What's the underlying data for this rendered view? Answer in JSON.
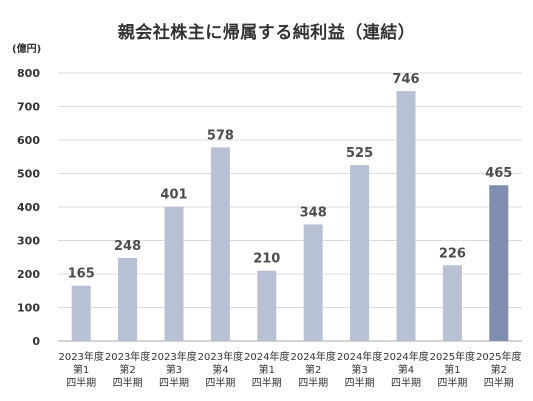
{
  "chart_data": {
    "type": "bar",
    "title": "親会社株主に帰属する純利益（連結）",
    "ylabel": "(億円)",
    "xlabel": "",
    "ylim": [
      0,
      800
    ],
    "yticks": [
      0,
      100,
      200,
      300,
      400,
      500,
      600,
      700,
      800
    ],
    "grid": true,
    "categories": [
      [
        "2023年度",
        "第1",
        "四半期"
      ],
      [
        "2023年度",
        "第2",
        "四半期"
      ],
      [
        "2023年度",
        "第3",
        "四半期"
      ],
      [
        "2023年度",
        "第4",
        "四半期"
      ],
      [
        "2024年度",
        "第1",
        "四半期"
      ],
      [
        "2024年度",
        "第2",
        "四半期"
      ],
      [
        "2024年度",
        "第3",
        "四半期"
      ],
      [
        "2024年度",
        "第4",
        "四半期"
      ],
      [
        "2025年度",
        "第1",
        "四半期"
      ],
      [
        "2025年度",
        "第2",
        "四半期"
      ]
    ],
    "values": [
      165,
      248,
      401,
      578,
      210,
      348,
      525,
      746,
      226,
      465
    ],
    "colors": {
      "default": "#b8c0d3",
      "highlight": "#7f8db0"
    },
    "highlight_index": 9
  }
}
